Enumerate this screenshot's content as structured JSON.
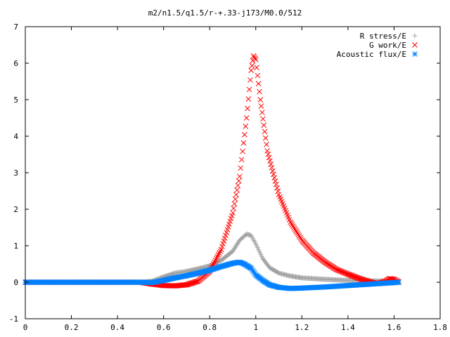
{
  "chart_data": {
    "type": "scatter",
    "title": "m2/n1.5/q1.5/r-+.33-j173/M0.0/512",
    "xlabel": "",
    "ylabel": "",
    "xlim": [
      0,
      1.8
    ],
    "ylim": [
      -1,
      7
    ],
    "x_ticks": [
      "0",
      "0.2",
      "0.4",
      "0.6",
      "0.8",
      "1",
      "1.2",
      "1.4",
      "1.6",
      "1.8"
    ],
    "y_ticks": [
      "-1",
      "0",
      "1",
      "2",
      "3",
      "4",
      "5",
      "6",
      "7"
    ],
    "grid": false,
    "legend_position": "top-right",
    "series": [
      {
        "name": "R stress/E",
        "color": "#a0a0a0",
        "marker": "plus-icon",
        "points": [
          [
            0,
            0
          ],
          [
            0.2,
            0
          ],
          [
            0.4,
            0
          ],
          [
            0.5,
            0
          ],
          [
            0.55,
            0.03
          ],
          [
            0.6,
            0.15
          ],
          [
            0.65,
            0.25
          ],
          [
            0.7,
            0.3
          ],
          [
            0.75,
            0.37
          ],
          [
            0.8,
            0.45
          ],
          [
            0.85,
            0.6
          ],
          [
            0.9,
            0.85
          ],
          [
            0.93,
            1.15
          ],
          [
            0.96,
            1.32
          ],
          [
            0.98,
            1.28
          ],
          [
            1.0,
            1.05
          ],
          [
            1.03,
            0.65
          ],
          [
            1.06,
            0.4
          ],
          [
            1.1,
            0.25
          ],
          [
            1.15,
            0.17
          ],
          [
            1.2,
            0.12
          ],
          [
            1.3,
            0.08
          ],
          [
            1.4,
            0.05
          ],
          [
            1.5,
            0.04
          ],
          [
            1.55,
            0.03
          ],
          [
            1.6,
            0.02
          ],
          [
            1.62,
            0.01
          ]
        ]
      },
      {
        "name": "G work/E",
        "color": "#ff0000",
        "marker": "cross-icon",
        "points": [
          [
            0,
            0
          ],
          [
            0.2,
            0
          ],
          [
            0.4,
            0
          ],
          [
            0.5,
            0
          ],
          [
            0.55,
            -0.05
          ],
          [
            0.6,
            -0.09
          ],
          [
            0.65,
            -0.1
          ],
          [
            0.7,
            -0.07
          ],
          [
            0.75,
            0.03
          ],
          [
            0.8,
            0.3
          ],
          [
            0.85,
            0.9
          ],
          [
            0.9,
            1.9
          ],
          [
            0.93,
            2.9
          ],
          [
            0.96,
            4.5
          ],
          [
            0.98,
            5.8
          ],
          [
            0.99,
            6.2
          ],
          [
            1.0,
            6.1
          ],
          [
            1.02,
            5.0
          ],
          [
            1.05,
            3.6
          ],
          [
            1.1,
            2.4
          ],
          [
            1.15,
            1.65
          ],
          [
            1.2,
            1.15
          ],
          [
            1.25,
            0.8
          ],
          [
            1.3,
            0.55
          ],
          [
            1.35,
            0.35
          ],
          [
            1.4,
            0.22
          ],
          [
            1.45,
            0.1
          ],
          [
            1.5,
            0.0
          ],
          [
            1.53,
            -0.04
          ],
          [
            1.56,
            0.02
          ],
          [
            1.58,
            0.1
          ],
          [
            1.6,
            0.08
          ],
          [
            1.62,
            0.01
          ]
        ]
      },
      {
        "name": "Acoustic flux/E",
        "color": "#0080ff",
        "marker": "asterisk-icon",
        "points": [
          [
            0,
            0
          ],
          [
            0.2,
            0
          ],
          [
            0.4,
            0
          ],
          [
            0.5,
            0
          ],
          [
            0.55,
            -0.01
          ],
          [
            0.6,
            0.05
          ],
          [
            0.65,
            0.12
          ],
          [
            0.7,
            0.18
          ],
          [
            0.75,
            0.25
          ],
          [
            0.8,
            0.33
          ],
          [
            0.85,
            0.43
          ],
          [
            0.9,
            0.52
          ],
          [
            0.93,
            0.55
          ],
          [
            0.95,
            0.5
          ],
          [
            0.98,
            0.38
          ],
          [
            1.0,
            0.2
          ],
          [
            1.03,
            0.05
          ],
          [
            1.06,
            -0.07
          ],
          [
            1.1,
            -0.14
          ],
          [
            1.15,
            -0.17
          ],
          [
            1.2,
            -0.16
          ],
          [
            1.3,
            -0.13
          ],
          [
            1.4,
            -0.09
          ],
          [
            1.5,
            -0.05
          ],
          [
            1.55,
            -0.03
          ],
          [
            1.6,
            -0.01
          ],
          [
            1.62,
            0.0
          ]
        ]
      }
    ]
  }
}
